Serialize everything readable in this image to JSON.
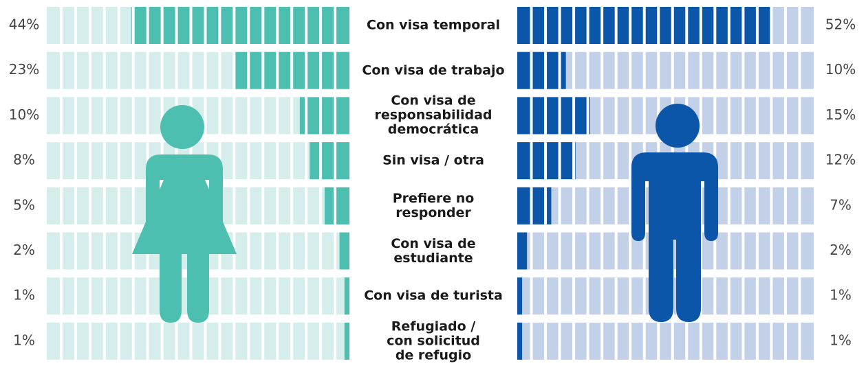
{
  "chart_data": {
    "type": "bar",
    "orientation": "horizontal-diverging",
    "categories": [
      "Con visa temporal",
      "Con visa de trabajo",
      "Con visa de\nresponsabilidad\ndemocrática",
      "Sin visa / otra",
      "Prefiere no\nresponder",
      "Con visa de\nestudiante",
      "Con visa de turista",
      "Refugiado /\ncon solicitud\nde refugio"
    ],
    "series": [
      {
        "color": "#4dbfb0",
        "background": "#d5eeeb",
        "values": [
          44,
          23,
          10,
          8,
          5,
          2,
          1,
          1
        ],
        "value_labels": [
          "44%",
          "23%",
          "10%",
          "8%",
          "5%",
          "2%",
          "1%",
          "1%"
        ]
      },
      {
        "color": "#0b56a8",
        "background": "#c3d1e8",
        "values": [
          52,
          10,
          15,
          12,
          7,
          2,
          1,
          1
        ],
        "value_labels": [
          "52%",
          "10%",
          "15%",
          "12%",
          "7%",
          "2%",
          "1%",
          "1%"
        ]
      }
    ],
    "xlim": [
      0,
      61
    ]
  }
}
